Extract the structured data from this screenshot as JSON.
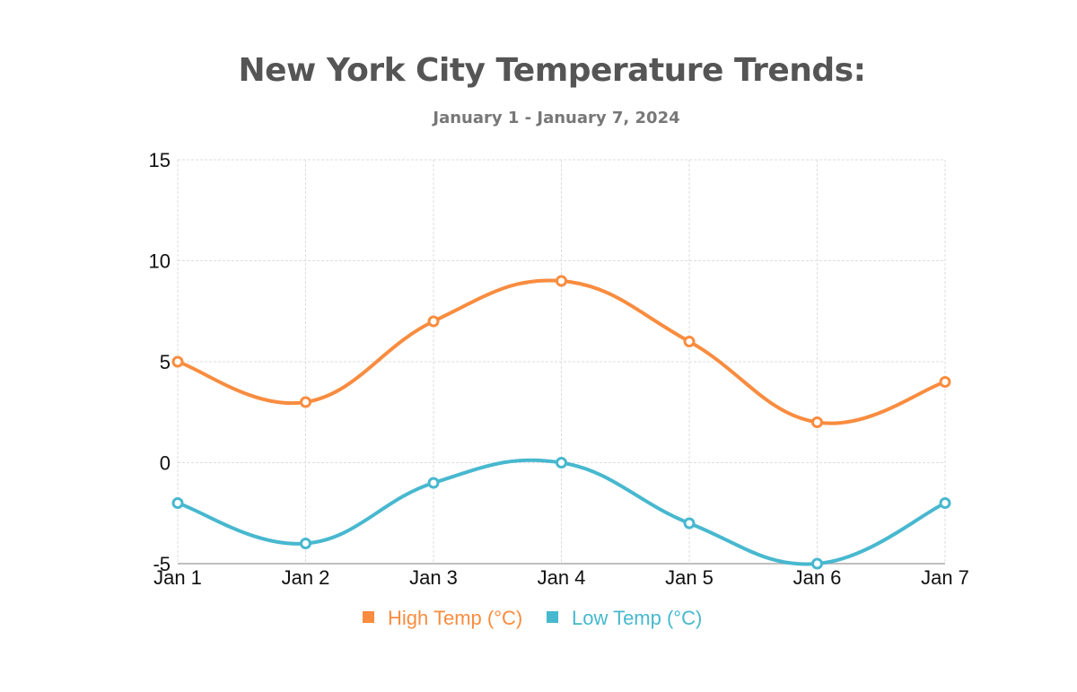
{
  "chart_data": {
    "type": "line",
    "title": "New York City Temperature Trends:",
    "subtitle": "January 1 - January 7, 2024",
    "categories": [
      "Jan 1",
      "Jan 2",
      "Jan 3",
      "Jan 4",
      "Jan 5",
      "Jan 6",
      "Jan 7"
    ],
    "series": [
      {
        "name": "High Temp (°C)",
        "color": "#F98C3F",
        "values": [
          5,
          3,
          7,
          9,
          6,
          2,
          4
        ]
      },
      {
        "name": "Low Temp (°C)",
        "color": "#47B8CF",
        "values": [
          -2,
          -4,
          -1,
          0,
          -3,
          -5,
          -2
        ]
      }
    ],
    "ylim": [
      -5,
      15
    ],
    "yticks": [
      "15",
      "10",
      "5",
      "0",
      "-5"
    ],
    "xlabel": "",
    "ylabel": "",
    "grid": true,
    "legend_position": "bottom"
  }
}
